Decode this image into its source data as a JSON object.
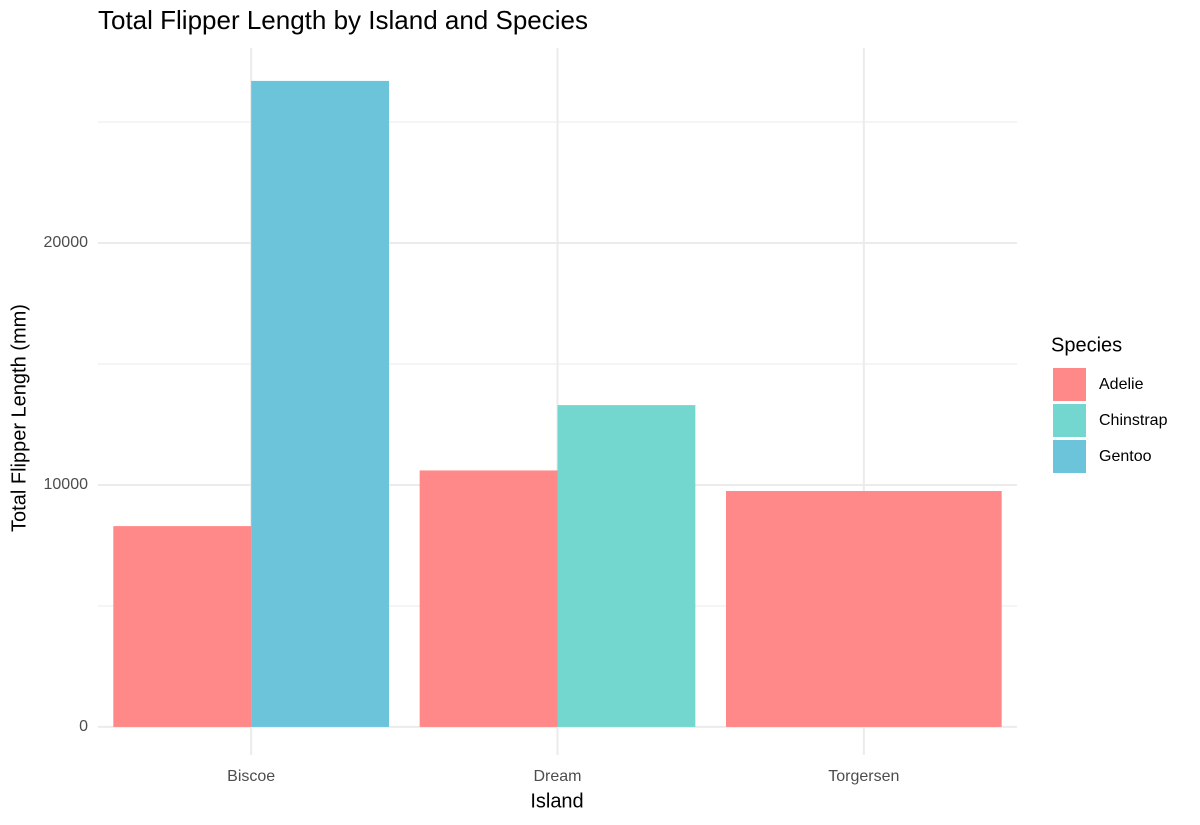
{
  "chart_data": {
    "type": "bar",
    "title": "Total Flipper Length by Island and Species",
    "x_label": "Island",
    "y_label": "Total Flipper Length (mm)",
    "categories": [
      "Biscoe",
      "Dream",
      "Torgersen"
    ],
    "series": [
      {
        "name": "Adelie",
        "color": "#ff8888",
        "values": [
          8300,
          10600,
          9750
        ]
      },
      {
        "name": "Chinstrap",
        "color": "#73d6cf",
        "values": [
          null,
          13300,
          null
        ]
      },
      {
        "name": "Gentoo",
        "color": "#6bc4da",
        "values": [
          26700,
          null,
          null
        ]
      }
    ],
    "ylim": [
      -1160,
      28060
    ],
    "yticks": [
      0,
      10000,
      20000
    ],
    "minor_yticks": [
      5000,
      15000,
      25000
    ],
    "grid": true,
    "legend_title": "Species",
    "legend_position": "right"
  }
}
